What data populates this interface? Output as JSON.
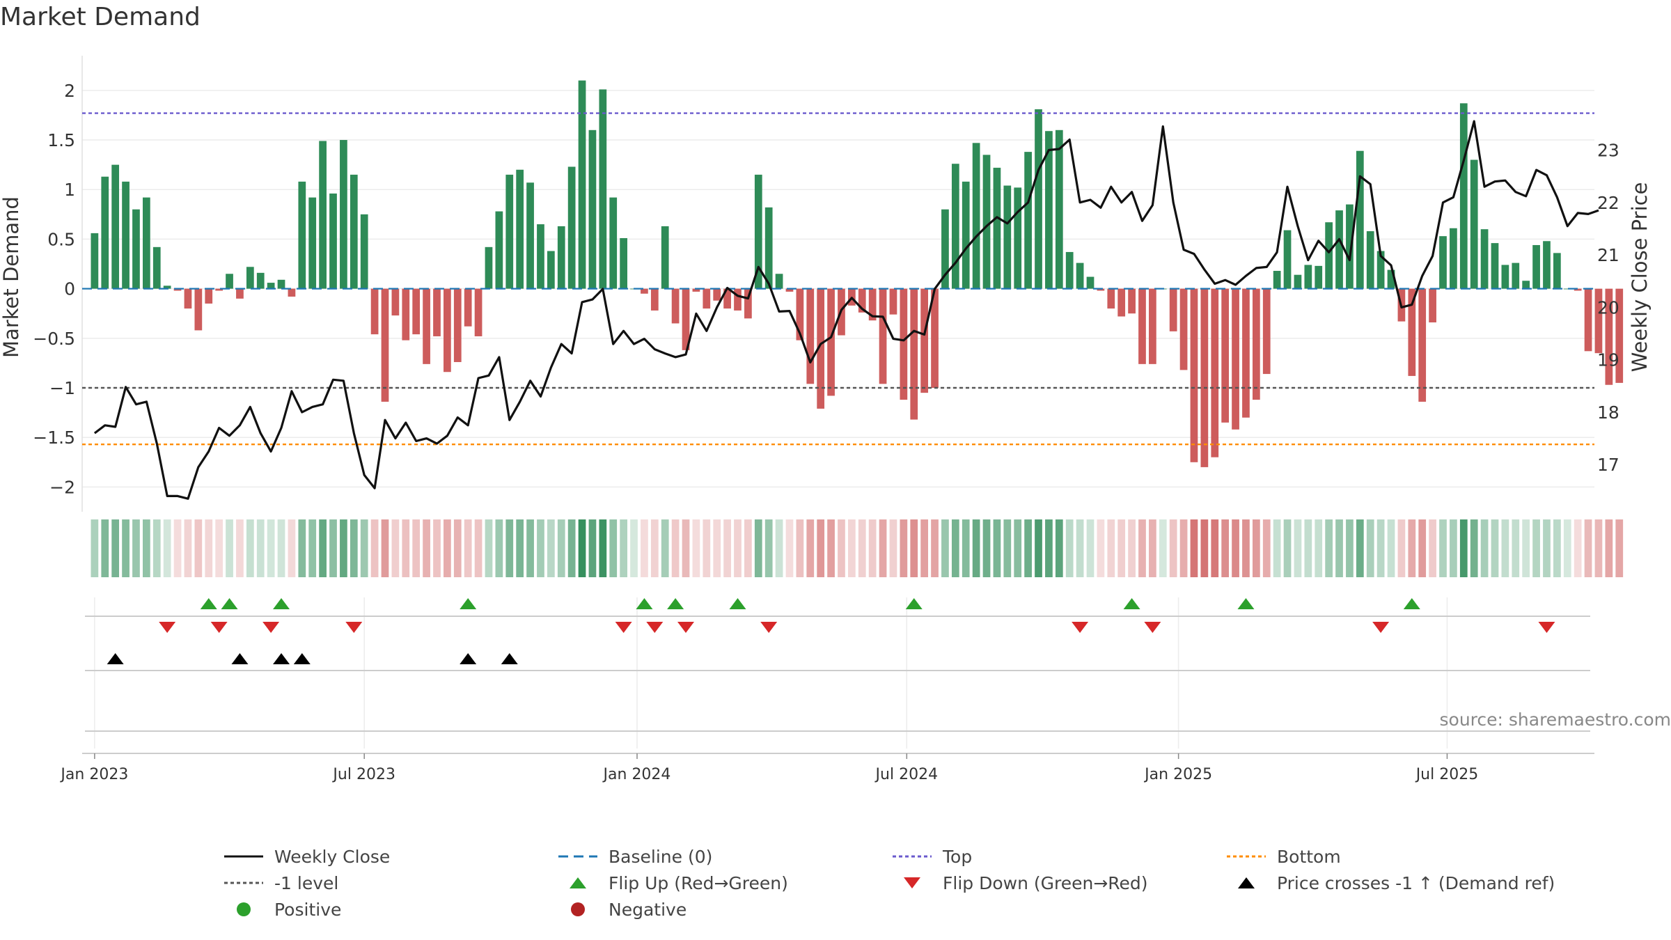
{
  "title": "Market Demand",
  "source": "source: sharemaestro.com",
  "colors": {
    "positive_bar": "#2e8b57",
    "negative_bar": "#cd5c5c",
    "close_line": "#111111",
    "baseline": "#1f77b4",
    "top_line": "#6a5acd",
    "minus1_line": "#555555",
    "bottom_line": "#ff8c00",
    "flip_up": "#2ca02c",
    "flip_down": "#d62728",
    "cross_marker": "#000000",
    "positive_dot": "#2ca02c",
    "negative_dot": "#b22222"
  },
  "legend": [
    {
      "key": "close",
      "label": "Weekly Close",
      "symbol": "line-solid",
      "color": "#111111"
    },
    {
      "key": "baseline",
      "label": "Baseline (0)",
      "symbol": "line-dash",
      "color": "#1f77b4"
    },
    {
      "key": "top",
      "label": "Top",
      "symbol": "line-dot",
      "color": "#6a5acd"
    },
    {
      "key": "bottom",
      "label": "Bottom",
      "symbol": "line-dot",
      "color": "#ff8c00"
    },
    {
      "key": "minus1",
      "label": "-1 level",
      "symbol": "line-dot",
      "color": "#555555"
    },
    {
      "key": "flipup",
      "label": "Flip Up (Red→Green)",
      "symbol": "triangle-up",
      "color": "#2ca02c"
    },
    {
      "key": "flipdown",
      "label": "Flip Down (Green→Red)",
      "symbol": "triangle-down",
      "color": "#d62728"
    },
    {
      "key": "cross",
      "label": "Price crosses -1 ↑ (Demand ref)",
      "symbol": "triangle-up",
      "color": "#000000"
    },
    {
      "key": "pos",
      "label": "Positive",
      "symbol": "dot",
      "color": "#2ca02c"
    },
    {
      "key": "neg",
      "label": "Negative",
      "symbol": "dot",
      "color": "#b22222"
    }
  ],
  "chart_data": {
    "type": "bar",
    "title": "Market Demand",
    "xlabel": "",
    "ylabel": "Market Demand",
    "y2label": "Weekly Close Price",
    "ylim": [
      -2.25,
      2.35
    ],
    "y2lim": [
      16.1,
      24.8
    ],
    "yticks": [
      {
        "value": -2,
        "label": "−2"
      },
      {
        "value": -1.5,
        "label": "−1.5"
      },
      {
        "value": -1,
        "label": "−1"
      },
      {
        "value": -0.5,
        "label": "−0.5"
      },
      {
        "value": 0,
        "label": "0"
      },
      {
        "value": 0.5,
        "label": "0.5"
      },
      {
        "value": 1,
        "label": "1"
      },
      {
        "value": 1.5,
        "label": "1.5"
      },
      {
        "value": 2,
        "label": "2"
      }
    ],
    "y2ticks": [
      17,
      18,
      19,
      20,
      21,
      22,
      23
    ],
    "xlim": [
      -1.2,
      144.6
    ],
    "xticks": [
      {
        "week": 0,
        "label": "Jan 2023"
      },
      {
        "week": 26,
        "label": "Jul 2023"
      },
      {
        "week": 52.3,
        "label": "Jan 2024"
      },
      {
        "week": 78.3,
        "label": "Jul 2024"
      },
      {
        "week": 104.5,
        "label": "Jan 2025"
      },
      {
        "week": 130.4,
        "label": "Jul 2025"
      }
    ],
    "levels": {
      "top": 1.77,
      "minus1": -1.0,
      "bottom": -1.57,
      "baseline": 0
    },
    "series": [
      {
        "name": "Market Demand",
        "axis": "left",
        "type": "bar",
        "values": [
          0.56,
          1.13,
          1.25,
          1.08,
          0.8,
          0.92,
          0.42,
          0.03,
          -0.02,
          -0.2,
          -0.42,
          -0.15,
          -0.02,
          0.15,
          -0.1,
          0.22,
          0.16,
          0.06,
          0.09,
          -0.08,
          1.08,
          0.92,
          1.49,
          0.96,
          1.5,
          1.15,
          0.75,
          -0.46,
          -1.14,
          -0.27,
          -0.52,
          -0.46,
          -0.76,
          -0.48,
          -0.84,
          -0.74,
          -0.38,
          -0.48,
          0.42,
          0.78,
          1.15,
          1.2,
          1.07,
          0.65,
          0.38,
          0.63,
          1.23,
          2.1,
          1.6,
          2.01,
          0.92,
          0.51,
          0.0,
          -0.05,
          -0.22,
          0.63,
          -0.35,
          -0.62,
          -0.03,
          -0.2,
          -0.12,
          -0.2,
          -0.22,
          -0.3,
          1.15,
          0.82,
          0.15,
          -0.03,
          -0.52,
          -0.96,
          -1.21,
          -1.08,
          -0.47,
          -0.17,
          -0.24,
          -0.32,
          -0.96,
          -0.26,
          -1.12,
          -1.32,
          -1.05,
          -1.0,
          0.8,
          1.26,
          1.08,
          1.47,
          1.35,
          1.22,
          1.04,
          1.02,
          1.38,
          1.81,
          1.59,
          1.6,
          0.37,
          0.26,
          0.12,
          -0.02,
          -0.2,
          -0.28,
          -0.25,
          -0.76,
          -0.76,
          0.0,
          -0.43,
          -0.82,
          -1.75,
          -1.8,
          -1.7,
          -1.35,
          -1.42,
          -1.3,
          -1.12,
          -0.86,
          0.18,
          0.59,
          0.14,
          0.24,
          0.23,
          0.67,
          0.79,
          0.85,
          1.39,
          0.58,
          0.38,
          0.19,
          -0.33,
          -0.88,
          -1.14,
          -0.34,
          0.53,
          0.61,
          1.87,
          1.3,
          0.6,
          0.46,
          0.24,
          0.26,
          0.08,
          0.44,
          0.48,
          0.36,
          0.0,
          -0.02,
          -0.63,
          -0.65,
          -0.97,
          -0.95
        ]
      },
      {
        "name": "Weekly Close",
        "axis": "right",
        "type": "line",
        "values": [
          17.6,
          17.75,
          17.72,
          18.48,
          18.15,
          18.2,
          17.4,
          16.4,
          16.4,
          16.35,
          16.95,
          17.25,
          17.7,
          17.55,
          17.75,
          18.1,
          17.6,
          17.25,
          17.7,
          18.4,
          18.0,
          18.1,
          18.15,
          18.62,
          18.6,
          17.6,
          16.8,
          16.55,
          17.85,
          17.5,
          17.8,
          17.45,
          17.5,
          17.4,
          17.55,
          17.9,
          17.75,
          18.65,
          18.7,
          19.05,
          17.85,
          18.2,
          18.6,
          18.3,
          18.85,
          19.3,
          19.12,
          20.1,
          20.15,
          20.35,
          19.3,
          19.55,
          19.3,
          19.4,
          19.2,
          19.12,
          19.05,
          19.1,
          19.88,
          19.55,
          20.0,
          20.37,
          20.22,
          20.17,
          20.77,
          20.45,
          19.92,
          19.93,
          19.5,
          18.95,
          19.3,
          19.43,
          19.95,
          20.18,
          19.97,
          19.83,
          19.82,
          19.4,
          19.37,
          19.55,
          19.48,
          20.35,
          20.62,
          20.85,
          21.12,
          21.35,
          21.55,
          21.72,
          21.6,
          21.82,
          22.0,
          22.62,
          23.0,
          23.02,
          23.2,
          22.0,
          22.05,
          21.9,
          22.3,
          22.0,
          22.2,
          21.65,
          21.95,
          23.45,
          22.0,
          21.1,
          21.02,
          20.72,
          20.45,
          20.52,
          20.43,
          20.6,
          20.75,
          20.77,
          21.05,
          22.3,
          21.55,
          20.9,
          21.27,
          21.05,
          21.3,
          20.9,
          22.5,
          22.35,
          20.98,
          20.8,
          20.0,
          20.05,
          20.6,
          20.98,
          22.0,
          22.1,
          22.8,
          23.55,
          22.3,
          22.4,
          22.42,
          22.2,
          22.12,
          22.62,
          22.52,
          22.1,
          21.55,
          21.8,
          21.78,
          21.85
        ]
      }
    ],
    "flip_up_weeks": [
      11,
      13,
      18,
      36,
      53,
      56,
      62,
      79,
      100,
      111,
      127
    ],
    "flip_down_weeks": [
      7,
      12,
      17,
      25,
      51,
      54,
      57,
      65,
      95,
      102,
      124,
      140
    ],
    "cross_up_weeks": [
      2,
      14,
      18,
      20,
      36,
      40
    ]
  }
}
